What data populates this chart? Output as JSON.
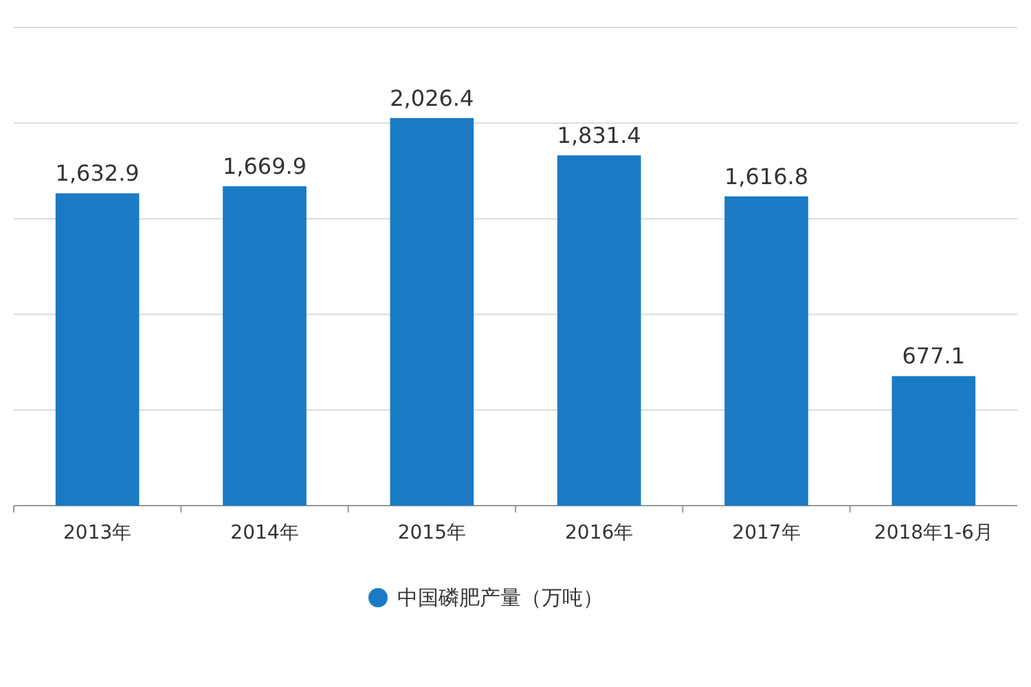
{
  "chart_data": {
    "type": "bar",
    "categories": [
      "2013年",
      "2014年",
      "2015年",
      "2016年",
      "2017年",
      "2018年1-6月"
    ],
    "series": [
      {
        "name": "中国磷肥产量（万吨）",
        "color": "#1a7bc4",
        "values": [
          1632.9,
          1669.9,
          2026.4,
          1831.4,
          1616.8,
          677.1
        ],
        "value_labels": [
          "1,632.9",
          "1,669.9",
          "2,026.4",
          "1,831.4",
          "1,616.8",
          "677.1"
        ]
      }
    ],
    "ylim": [
      0,
      2500
    ],
    "yticks": [
      {
        "value": 0,
        "label": null
      },
      {
        "value": 500,
        "label": null
      },
      {
        "value": 1000,
        "label": null
      },
      {
        "value": 1500,
        "label": null
      },
      {
        "value": 2000,
        "label": null
      },
      {
        "value": 2500,
        "label": null
      }
    ],
    "grid": "y",
    "legend": "bottom",
    "tick_labels": "x"
  }
}
